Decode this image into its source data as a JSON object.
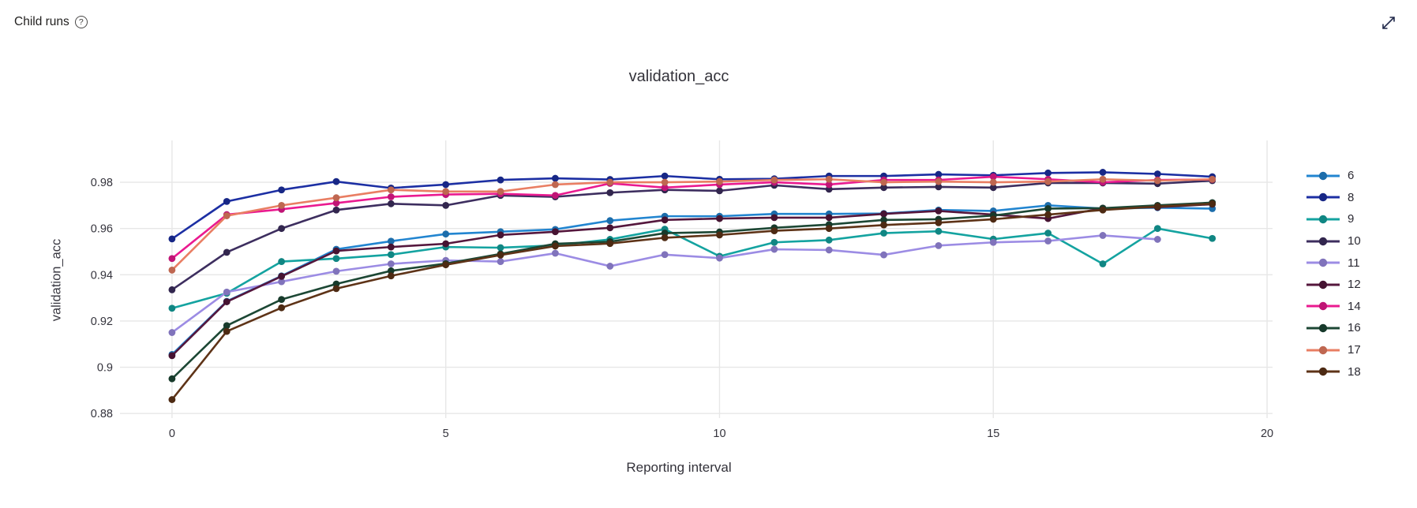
{
  "header": {
    "title": "Child runs",
    "help_icon": "question-mark-circle"
  },
  "toolbar": {
    "expand_icon": "expand-diagonal-arrow"
  },
  "chart_data": {
    "type": "line",
    "title": "validation_acc",
    "xlabel": "Reporting interval",
    "ylabel": "validation_acc",
    "grid": true,
    "legend_position": "right",
    "xlim": [
      -0.95,
      20.1
    ],
    "ylim": [
      0.878,
      0.9981
    ],
    "x_ticks": [
      0,
      5,
      10,
      15,
      20
    ],
    "x_tick_labels": [
      "0",
      "5",
      "10",
      "15",
      "20"
    ],
    "y_ticks": [
      0.88,
      0.9,
      0.92,
      0.94,
      0.96,
      0.98
    ],
    "y_tick_labels": [
      "0.88",
      "0.9",
      "0.92",
      "0.94",
      "0.96",
      "0.98"
    ],
    "x": [
      0,
      1,
      2,
      3,
      4,
      5,
      6,
      7,
      8,
      9,
      10,
      11,
      12,
      13,
      14,
      15,
      16,
      17,
      18,
      19
    ],
    "series": [
      {
        "name": "6",
        "color": "#2285d0",
        "values": [
          0.9055,
          0.9285,
          0.9395,
          0.951,
          0.9545,
          0.9576,
          0.9586,
          0.9596,
          0.9634,
          0.9653,
          0.9653,
          0.9663,
          0.9663,
          0.9665,
          0.968,
          0.9676,
          0.97,
          0.9686,
          0.969,
          0.9686
        ]
      },
      {
        "name": "8",
        "color": "#1c2fa3",
        "values": [
          0.9555,
          0.9717,
          0.9767,
          0.9803,
          0.9775,
          0.979,
          0.981,
          0.9817,
          0.9812,
          0.9827,
          0.9813,
          0.9815,
          0.9827,
          0.9827,
          0.9834,
          0.983,
          0.984,
          0.9843,
          0.9836,
          0.9824
        ]
      },
      {
        "name": "9",
        "color": "#14a3a0",
        "values": [
          0.9255,
          0.932,
          0.9457,
          0.947,
          0.9487,
          0.952,
          0.9517,
          0.9527,
          0.9553,
          0.9597,
          0.948,
          0.954,
          0.955,
          0.958,
          0.9588,
          0.9554,
          0.958,
          0.9447,
          0.96,
          0.9557
        ]
      },
      {
        "name": "10",
        "color": "#3d2e5f",
        "values": [
          0.9335,
          0.9497,
          0.96,
          0.968,
          0.9707,
          0.97,
          0.9743,
          0.9737,
          0.9755,
          0.9767,
          0.9763,
          0.9787,
          0.977,
          0.9777,
          0.978,
          0.9777,
          0.9797,
          0.9797,
          0.9794,
          0.9807
        ]
      },
      {
        "name": "11",
        "color": "#9c8ce4",
        "values": [
          0.915,
          0.9325,
          0.937,
          0.9415,
          0.9447,
          0.9462,
          0.9457,
          0.9493,
          0.9437,
          0.9487,
          0.9472,
          0.951,
          0.9507,
          0.9486,
          0.9526,
          0.954,
          0.9546,
          0.957,
          0.9553
        ]
      },
      {
        "name": "12",
        "color": "#55173d",
        "values": [
          0.905,
          0.9283,
          0.9393,
          0.9503,
          0.952,
          0.9534,
          0.9572,
          0.9586,
          0.9603,
          0.9637,
          0.9643,
          0.9647,
          0.9647,
          0.9663,
          0.9676,
          0.966,
          0.9643,
          0.9688,
          0.9692,
          0.9705
        ]
      },
      {
        "name": "14",
        "color": "#ea1a90",
        "values": [
          0.947,
          0.966,
          0.9683,
          0.971,
          0.9737,
          0.9747,
          0.975,
          0.9743,
          0.9795,
          0.9777,
          0.979,
          0.98,
          0.979,
          0.981,
          0.981,
          0.9824,
          0.9813,
          0.98,
          0.981,
          0.9812
        ]
      },
      {
        "name": "16",
        "color": "#1c4734",
        "values": [
          0.895,
          0.918,
          0.9293,
          0.936,
          0.9417,
          0.9448,
          0.949,
          0.9534,
          0.9543,
          0.958,
          0.9585,
          0.9603,
          0.9617,
          0.9637,
          0.964,
          0.9656,
          0.9686,
          0.9688,
          0.97,
          0.9712
        ]
      },
      {
        "name": "17",
        "color": "#e97e63",
        "values": [
          0.942,
          0.9655,
          0.97,
          0.9733,
          0.9767,
          0.976,
          0.976,
          0.979,
          0.98,
          0.98,
          0.9803,
          0.981,
          0.9813,
          0.98,
          0.9803,
          0.98,
          0.9803,
          0.9813,
          0.9807,
          0.9813
        ]
      },
      {
        "name": "18",
        "color": "#5e3317",
        "values": [
          0.886,
          0.9155,
          0.9257,
          0.934,
          0.9395,
          0.9443,
          0.9485,
          0.9524,
          0.9535,
          0.956,
          0.9572,
          0.959,
          0.96,
          0.9615,
          0.9625,
          0.964,
          0.966,
          0.968,
          0.9695,
          0.9707
        ]
      }
    ]
  },
  "colors": {
    "grid": "#e7e7e7",
    "tick_text": "#34333c",
    "icon": "#21294a"
  }
}
